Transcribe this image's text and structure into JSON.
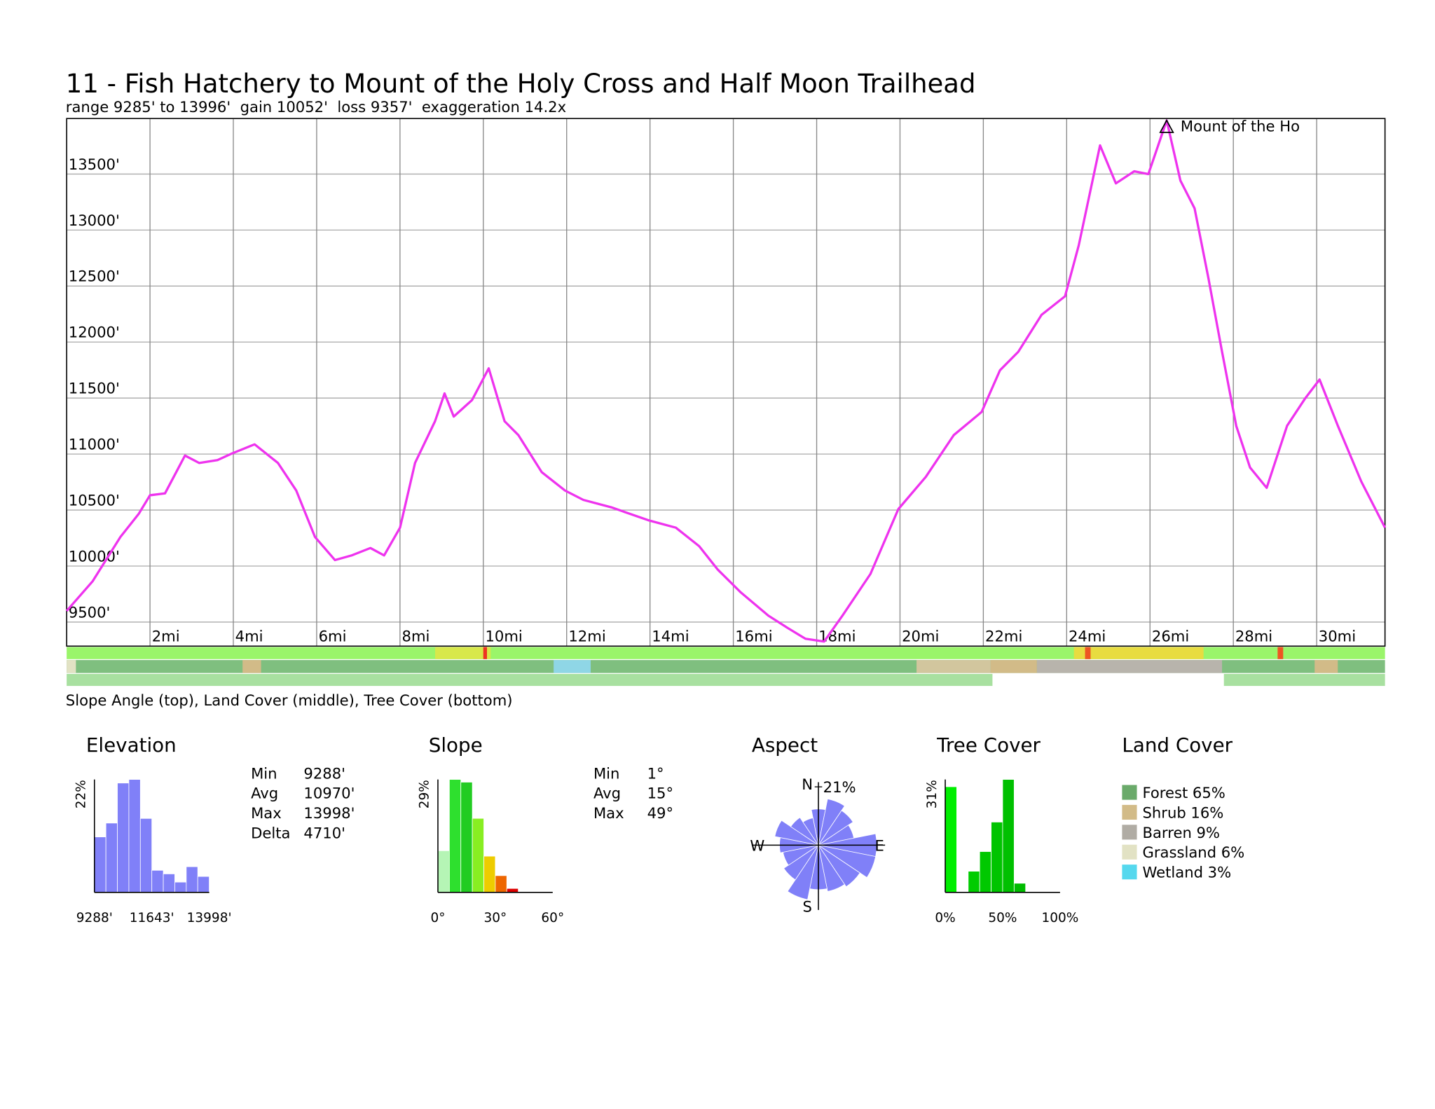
{
  "chart_data": [
    {
      "type": "line",
      "title": "11 - Fish Hatchery to Mount of the Holy Cross and Half Moon Trailhead",
      "subtitle": "range 9285' to 13996'  gain 10052'  loss 9357'  exaggeration 14.2x",
      "color": "#ee33ee",
      "x": [
        0,
        0.62,
        1.29,
        1.73,
        2.0,
        2.36,
        2.84,
        3.18,
        3.62,
        3.96,
        4.51,
        5.07,
        5.51,
        5.96,
        6.44,
        6.84,
        7.29,
        7.62,
        8.0,
        8.36,
        8.84,
        9.07,
        9.29,
        9.73,
        10.13,
        10.51,
        10.84,
        11.4,
        11.96,
        12.4,
        13.07,
        13.96,
        14.62,
        15.18,
        15.62,
        16.18,
        16.84,
        17.29,
        17.73,
        18.18,
        18.62,
        19.29,
        19.96,
        20.62,
        21.29,
        21.96,
        22.4,
        22.84,
        23.4,
        23.96,
        24.29,
        24.8,
        25.18,
        25.62,
        25.96,
        26.4,
        26.73,
        27.07,
        27.4,
        27.73,
        28.07,
        28.4,
        28.8,
        29.29,
        29.73,
        30.07,
        30.51,
        31.07,
        31.64
      ],
      "values": [
        9599,
        9863,
        10260,
        10467,
        10632,
        10649,
        10987,
        10921,
        10946,
        11004,
        11087,
        10921,
        10674,
        10260,
        10054,
        10095,
        10161,
        10095,
        10343,
        10921,
        11293,
        11541,
        11335,
        11483,
        11765,
        11293,
        11169,
        10839,
        10674,
        10591,
        10525,
        10409,
        10343,
        10178,
        9971,
        9764,
        9558,
        9450,
        9351,
        9326,
        9558,
        9930,
        10508,
        10797,
        11169,
        11376,
        11748,
        11913,
        12244,
        12409,
        12864,
        13756,
        13417,
        13525,
        13500,
        13979,
        13442,
        13194,
        12574,
        11913,
        11252,
        10880,
        10698,
        11252,
        11500,
        11665,
        11252,
        10756,
        10343
      ],
      "xlim": [
        0,
        31.64
      ],
      "ylim": [
        9285,
        13996
      ],
      "xticks": [
        {
          "value": 2,
          "label": "2mi"
        },
        {
          "value": 4,
          "label": "4mi"
        },
        {
          "value": 6,
          "label": "6mi"
        },
        {
          "value": 8,
          "label": "8mi"
        },
        {
          "value": 10,
          "label": "10mi"
        },
        {
          "value": 12,
          "label": "12mi"
        },
        {
          "value": 14,
          "label": "14mi"
        },
        {
          "value": 16,
          "label": "16mi"
        },
        {
          "value": 18,
          "label": "18mi"
        },
        {
          "value": 20,
          "label": "20mi"
        },
        {
          "value": 22,
          "label": "22mi"
        },
        {
          "value": 24,
          "label": "24mi"
        },
        {
          "value": 26,
          "label": "26mi"
        },
        {
          "value": 28,
          "label": "28mi"
        },
        {
          "value": 30,
          "label": "30mi"
        }
      ],
      "yticks": [
        {
          "value": 9500,
          "label": "9500'"
        },
        {
          "value": 10000,
          "label": "10000'"
        },
        {
          "value": 10500,
          "label": "10500'"
        },
        {
          "value": 11000,
          "label": "11000'"
        },
        {
          "value": 11500,
          "label": "11500'"
        },
        {
          "value": 12000,
          "label": "12000'"
        },
        {
          "value": 12500,
          "label": "12500'"
        },
        {
          "value": 13000,
          "label": "13000'"
        },
        {
          "value": 13500,
          "label": "13500'"
        }
      ],
      "grid": true,
      "annotations": [
        {
          "text": "Mount of the Ho",
          "x": 26.4
        }
      ],
      "caption": "Slope Angle (top), Land Cover (middle), Tree Cover (bottom)"
    },
    {
      "type": "histogram",
      "title": "Elevation",
      "color": "#8080f8",
      "bins": [
        9288,
        9759,
        10230,
        10701,
        11172,
        11643,
        12114,
        12585,
        13056,
        13527,
        13998
      ],
      "values": [
        10.8,
        13.5,
        21.3,
        22,
        14.4,
        4.3,
        3.6,
        2.0,
        5.0,
        3.1
      ],
      "xlim": [
        9288,
        13998
      ],
      "xticks": [
        {
          "value": 9288,
          "label": "9288'"
        },
        {
          "value": 11643,
          "label": "11643'"
        },
        {
          "value": 13998,
          "label": "13998'"
        }
      ],
      "ylim": [
        0,
        22
      ],
      "yticks": [
        {
          "value": 22,
          "label": "22%"
        }
      ],
      "stats": {
        "labels": [
          "Min",
          "Avg",
          "Max",
          "Delta"
        ],
        "values": [
          "9288'",
          "10970'",
          "13998'",
          "4710'"
        ]
      }
    },
    {
      "type": "histogram",
      "title": "Slope",
      "colors": [
        "#b5f5b5",
        "#2ee02e",
        "#22cc22",
        "#88ee22",
        "#eecc00",
        "#ee6600",
        "#dd0000"
      ],
      "bins": [
        0,
        6,
        12,
        18,
        24,
        30,
        36,
        42
      ],
      "values": [
        10.7,
        29,
        28.3,
        19,
        9.3,
        4.3,
        1
      ],
      "xlim": [
        0,
        60
      ],
      "xticks": [
        {
          "value": 0,
          "label": "0°"
        },
        {
          "value": 30,
          "label": "30°"
        },
        {
          "value": 60,
          "label": "60°"
        }
      ],
      "ylim": [
        0,
        29
      ],
      "yticks": [
        {
          "value": 29,
          "label": "29%"
        }
      ],
      "stats": {
        "labels": [
          "Min",
          "Avg",
          "Max"
        ],
        "values": [
          "1°",
          "15°",
          "49°"
        ]
      }
    },
    {
      "type": "rose",
      "title": "Aspect",
      "color": "#8080f8",
      "categories": [
        "N",
        null,
        null,
        null,
        "E",
        null,
        null,
        null,
        "S",
        null,
        null,
        null,
        "W",
        null,
        null,
        null
      ],
      "values": [
        13,
        17,
        15,
        13,
        21,
        21,
        18,
        17,
        16,
        20,
        15,
        13,
        14,
        16,
        12,
        10
      ],
      "rlim": [
        0,
        21
      ],
      "rticks": [
        {
          "value": 21,
          "label": "21%"
        }
      ]
    },
    {
      "type": "histogram",
      "title": "Tree Cover",
      "colors": [
        "#00ee00",
        "#00d000",
        "#00cc00",
        "#00c800",
        "#00c400",
        "#00c000",
        "#00bb00"
      ],
      "bins": [
        0,
        10,
        20,
        30,
        40,
        50,
        60,
        70
      ],
      "values": [
        29,
        0,
        5.8,
        11.2,
        19.3,
        31,
        2.5
      ],
      "xlim": [
        0,
        100
      ],
      "xticks": [
        {
          "value": 0,
          "label": "0%"
        },
        {
          "value": 50,
          "label": "50%"
        },
        {
          "value": 100,
          "label": "100%"
        }
      ],
      "ylim": [
        0,
        31
      ],
      "yticks": [
        {
          "value": 31,
          "label": "31%"
        }
      ]
    },
    {
      "type": "legend",
      "title": "Land Cover",
      "categories": [
        "Forest",
        "Shrub",
        "Barren",
        "Grassland",
        "Wetland"
      ],
      "values": [
        65,
        16,
        9,
        6,
        3
      ],
      "value_labels": [
        "65%",
        "16%",
        "9%",
        "6%",
        "3%"
      ],
      "colors": [
        "#6aaa6a",
        "#d2bb88",
        "#b0aca4",
        "#e2e2c4",
        "#55d8ee"
      ]
    }
  ]
}
